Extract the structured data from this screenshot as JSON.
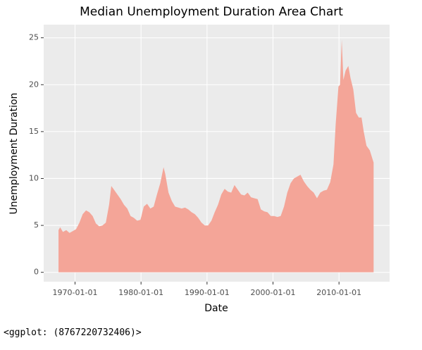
{
  "chart_data": {
    "type": "area",
    "title": "Median Unemployment Duration Area Chart",
    "x_label": "Date",
    "y_label": "Unemployment Duration",
    "color": "#f4a598",
    "grid": true,
    "x": [
      "1967-07-01",
      "1967-10-01",
      "1968-03-01",
      "1968-09-01",
      "1969-03-01",
      "1969-09-01",
      "1970-03-01",
      "1970-09-01",
      "1971-03-01",
      "1971-09-01",
      "1972-03-01",
      "1972-09-01",
      "1973-03-01",
      "1973-09-01",
      "1974-03-01",
      "1974-09-01",
      "1975-03-01",
      "1975-07-01",
      "1975-12-01",
      "1976-06-01",
      "1976-12-01",
      "1977-06-01",
      "1977-12-01",
      "1978-06-01",
      "1978-12-01",
      "1979-06-01",
      "1979-12-01",
      "1980-06-01",
      "1980-12-01",
      "1981-06-01",
      "1981-12-01",
      "1982-06-01",
      "1982-12-01",
      "1983-06-01",
      "1983-09-01",
      "1984-03-01",
      "1984-09-01",
      "1985-03-01",
      "1985-09-01",
      "1986-03-01",
      "1986-09-01",
      "1987-03-01",
      "1987-09-01",
      "1988-03-01",
      "1988-09-01",
      "1989-03-01",
      "1989-09-01",
      "1990-03-01",
      "1990-09-01",
      "1991-03-01",
      "1991-09-01",
      "1992-03-01",
      "1992-09-01",
      "1993-03-01",
      "1993-09-01",
      "1994-03-01",
      "1994-09-01",
      "1995-03-01",
      "1995-09-01",
      "1996-03-01",
      "1996-09-01",
      "1997-03-01",
      "1997-09-01",
      "1998-03-01",
      "1998-09-01",
      "1999-03-01",
      "1999-09-01",
      "2000-03-01",
      "2000-09-01",
      "2001-03-01",
      "2001-09-01",
      "2002-03-01",
      "2002-09-01",
      "2003-03-01",
      "2003-09-01",
      "2004-03-01",
      "2004-09-01",
      "2005-03-01",
      "2005-09-01",
      "2006-03-01",
      "2006-09-01",
      "2007-03-01",
      "2007-09-01",
      "2008-03-01",
      "2008-09-01",
      "2009-03-01",
      "2009-07-01",
      "2009-12-01",
      "2010-03-01",
      "2010-06-01",
      "2010-09-01",
      "2011-01-01",
      "2011-06-01",
      "2011-10-01",
      "2012-03-01",
      "2012-08-01",
      "2013-01-01",
      "2013-06-01",
      "2013-10-01",
      "2014-03-01",
      "2014-09-01",
      "2015-04-01"
    ],
    "values": [
      4.5,
      4.8,
      4.3,
      4.5,
      4.2,
      4.4,
      4.6,
      5.3,
      6.2,
      6.6,
      6.4,
      6.0,
      5.2,
      4.9,
      5.0,
      5.3,
      7.2,
      9.2,
      8.8,
      8.3,
      7.8,
      7.2,
      6.8,
      6.0,
      5.8,
      5.5,
      5.6,
      7.0,
      7.3,
      6.8,
      7.0,
      8.3,
      9.5,
      11.2,
      10.5,
      8.5,
      7.6,
      7.0,
      6.9,
      6.8,
      6.9,
      6.7,
      6.4,
      6.2,
      5.8,
      5.3,
      5.0,
      5.0,
      5.5,
      6.4,
      7.2,
      8.3,
      8.9,
      8.6,
      8.5,
      9.3,
      8.8,
      8.3,
      8.2,
      8.5,
      8.0,
      7.9,
      7.8,
      6.7,
      6.5,
      6.4,
      6.0,
      6.0,
      5.9,
      6.0,
      7.0,
      8.5,
      9.5,
      10.0,
      10.2,
      10.4,
      9.7,
      9.2,
      8.8,
      8.5,
      7.9,
      8.5,
      8.7,
      8.8,
      9.6,
      11.5,
      15.8,
      19.8,
      20.0,
      24.8,
      20.5,
      21.5,
      22.0,
      20.7,
      19.5,
      17.0,
      16.5,
      16.5,
      15.0,
      13.5,
      13.0,
      11.7
    ],
    "xlim": [
      "1965-04-01",
      "2017-09-01"
    ],
    "xticks": [
      "1970-01-01",
      "1980-01-01",
      "1990-01-01",
      "2000-01-01",
      "2010-01-01"
    ],
    "ylim": [
      -1.0,
      26.4
    ],
    "yticks": [
      0,
      5,
      10,
      15,
      20,
      25
    ]
  },
  "output_text": "<ggplot: (8767220732406)>"
}
